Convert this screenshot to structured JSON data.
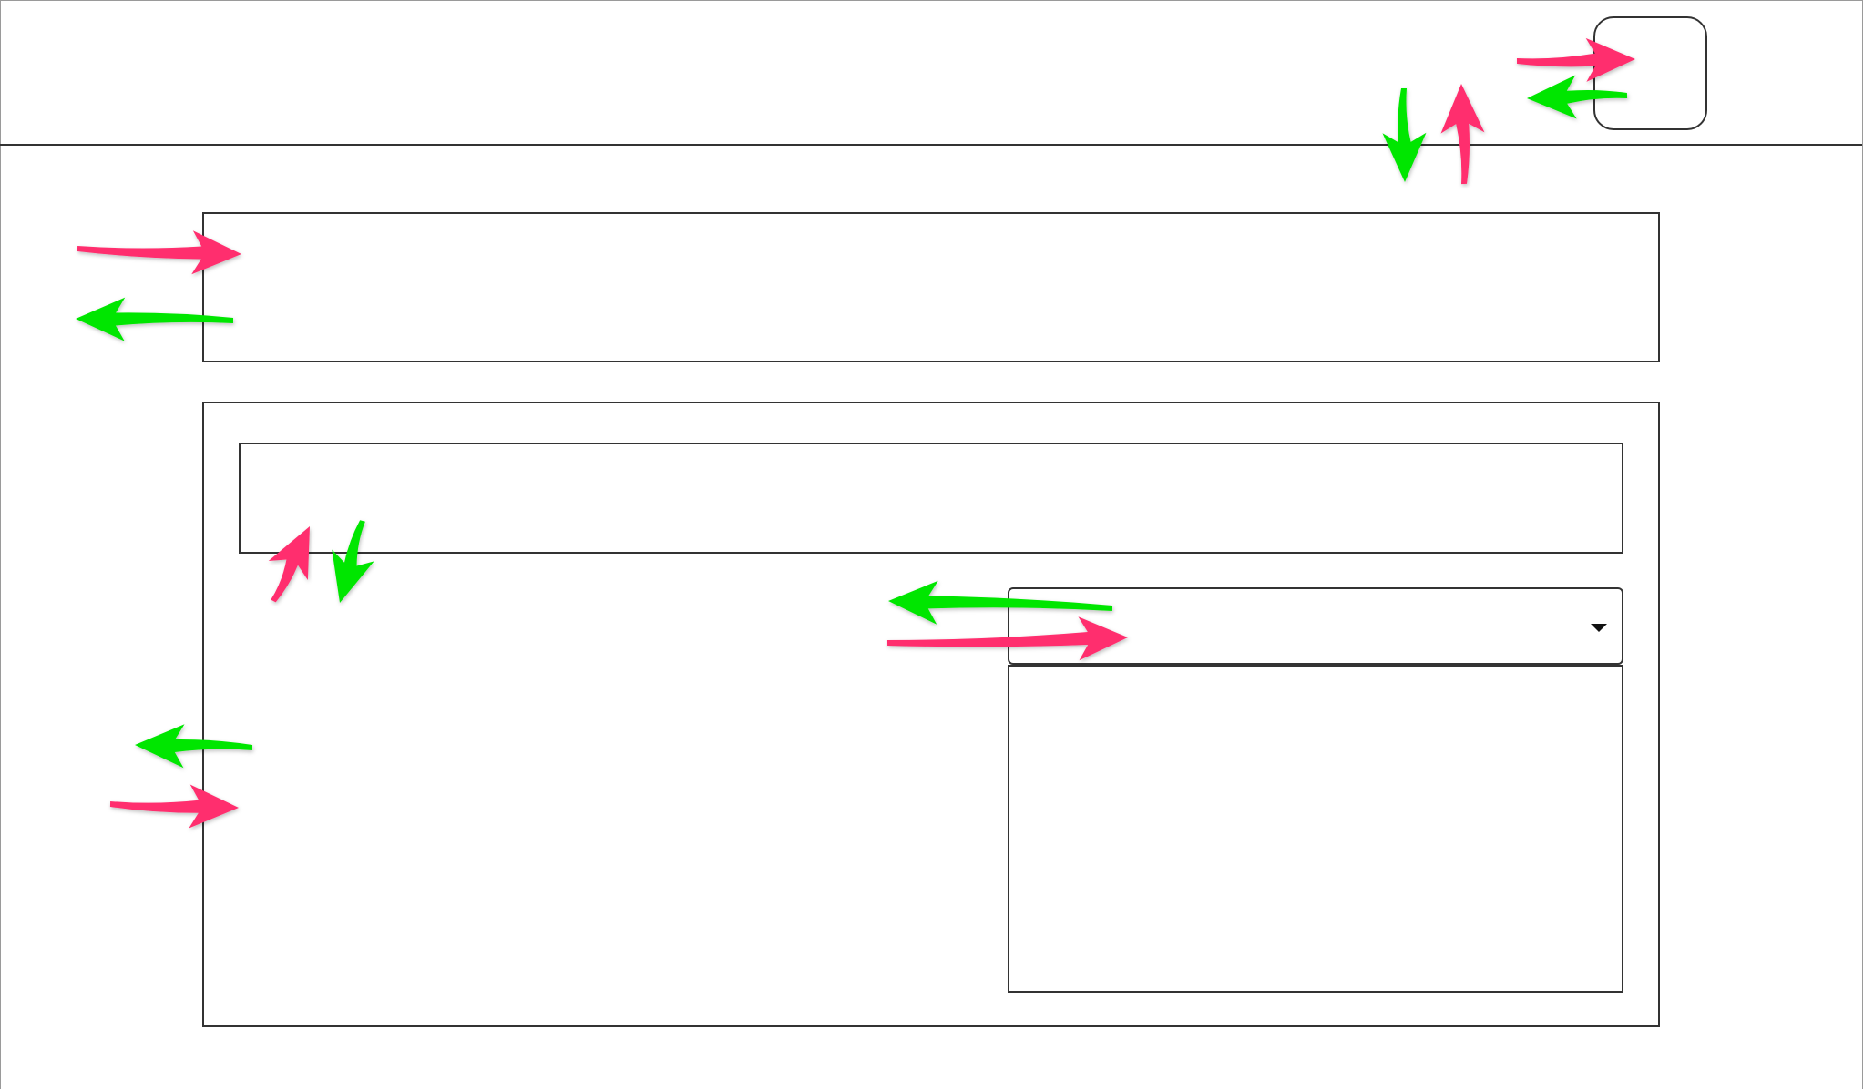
{
  "colors": {
    "outline": "#333333",
    "arrow_pink": "#ff2e6e",
    "arrow_green": "#00e600",
    "background": "#ffffff"
  },
  "arrows": [
    {
      "name": "arrow-pink-header-button-in",
      "color": "pink",
      "icon": "arrow-right-icon"
    },
    {
      "name": "arrow-green-header-button-out",
      "color": "green",
      "icon": "arrow-left-icon"
    },
    {
      "name": "arrow-green-header-down",
      "color": "green",
      "icon": "arrow-down-icon"
    },
    {
      "name": "arrow-pink-header-up",
      "color": "pink",
      "icon": "arrow-up-icon"
    },
    {
      "name": "arrow-pink-top-panel-in",
      "color": "pink",
      "icon": "arrow-right-icon"
    },
    {
      "name": "arrow-green-top-panel-out",
      "color": "green",
      "icon": "arrow-left-icon"
    },
    {
      "name": "arrow-pink-inner-box-up",
      "color": "pink",
      "icon": "arrow-up-icon"
    },
    {
      "name": "arrow-green-inner-box-down",
      "color": "green",
      "icon": "arrow-down-icon"
    },
    {
      "name": "arrow-green-dropdown-out",
      "color": "green",
      "icon": "arrow-left-icon"
    },
    {
      "name": "arrow-pink-dropdown-in",
      "color": "pink",
      "icon": "arrow-right-icon"
    },
    {
      "name": "arrow-green-main-panel-out",
      "color": "green",
      "icon": "arrow-left-icon"
    },
    {
      "name": "arrow-pink-main-panel-in",
      "color": "pink",
      "icon": "arrow-right-icon"
    }
  ]
}
